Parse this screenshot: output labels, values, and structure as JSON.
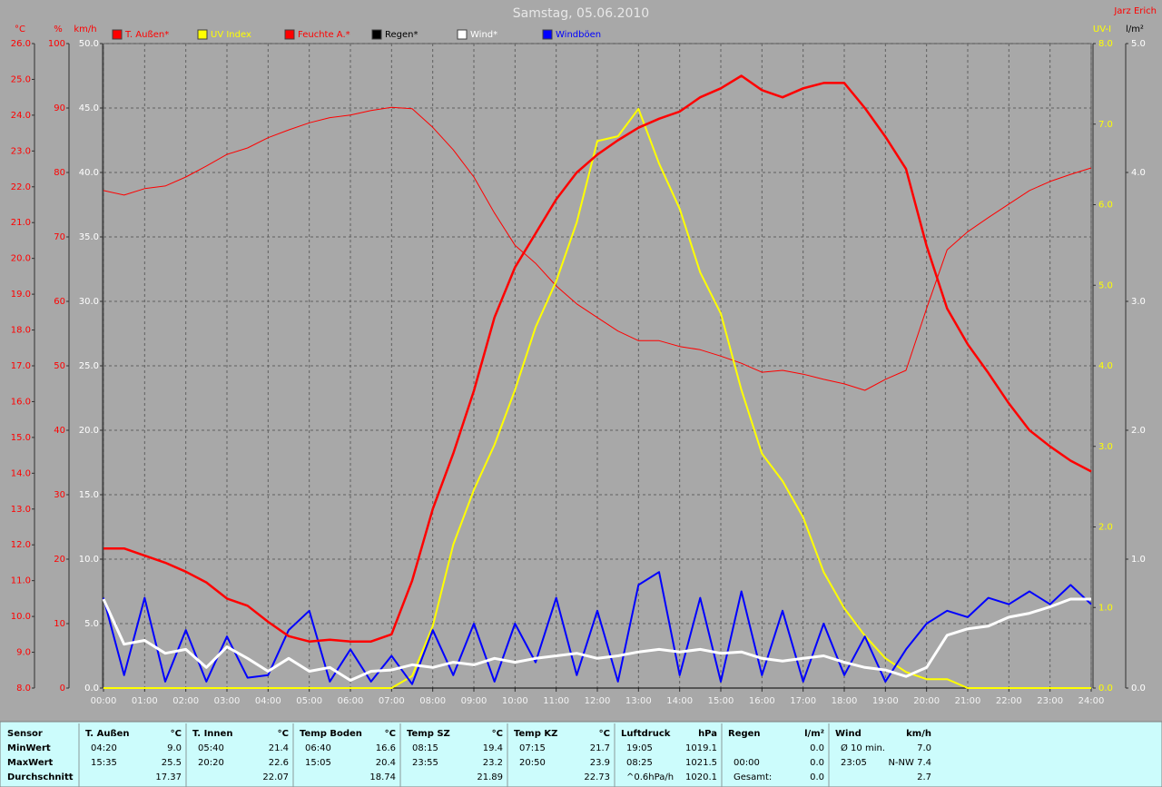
{
  "chart_data": {
    "type": "line",
    "title": "Samstag, 05.06.2010",
    "author": "Jarz Erich",
    "x": [
      0,
      0.5,
      1,
      1.5,
      2,
      2.5,
      3,
      3.5,
      4,
      4.5,
      5,
      5.5,
      6,
      6.5,
      7,
      7.5,
      8,
      8.5,
      9,
      9.5,
      10,
      10.5,
      11,
      11.5,
      12,
      12.5,
      13,
      13.5,
      14,
      14.5,
      15,
      15.5,
      16,
      16.5,
      17,
      17.5,
      18,
      18.5,
      19,
      19.5,
      20,
      20.5,
      21,
      21.5,
      22,
      22.5,
      23,
      23.5,
      24
    ],
    "xlim": [
      0,
      24
    ],
    "xticks": [
      {
        "value": 0,
        "label": "00:00"
      },
      {
        "value": 1,
        "label": "01:00"
      },
      {
        "value": 2,
        "label": "02:00"
      },
      {
        "value": 3,
        "label": "03:00"
      },
      {
        "value": 4,
        "label": "04:00"
      },
      {
        "value": 5,
        "label": "05:00"
      },
      {
        "value": 6,
        "label": "06:00"
      },
      {
        "value": 7,
        "label": "07:00"
      },
      {
        "value": 8,
        "label": "08:00"
      },
      {
        "value": 9,
        "label": "09:00"
      },
      {
        "value": 10,
        "label": "10:00"
      },
      {
        "value": 11,
        "label": "11:00"
      },
      {
        "value": 12,
        "label": "12:00"
      },
      {
        "value": 13,
        "label": "13:00"
      },
      {
        "value": 14,
        "label": "14:00"
      },
      {
        "value": 15,
        "label": "15:00"
      },
      {
        "value": 16,
        "label": "16:00"
      },
      {
        "value": 17,
        "label": "17:00"
      },
      {
        "value": 18,
        "label": "18:00"
      },
      {
        "value": 19,
        "label": "19:00"
      },
      {
        "value": 20,
        "label": "20:00"
      },
      {
        "value": 21,
        "label": "21:00"
      },
      {
        "value": 22,
        "label": "22:00"
      },
      {
        "value": 23,
        "label": "23:00"
      },
      {
        "value": 24,
        "label": "24:00"
      }
    ],
    "grid": true,
    "axes": [
      {
        "label": "°C",
        "side": "left",
        "color": "#ff0000",
        "lim": [
          8,
          26
        ],
        "ticks": [
          {
            "value": 8,
            "label": "8.0"
          },
          {
            "value": 9,
            "label": "9.0"
          },
          {
            "value": 10,
            "label": "10.0"
          },
          {
            "value": 11,
            "label": "11.0"
          },
          {
            "value": 12,
            "label": "12.0"
          },
          {
            "value": 13,
            "label": "13.0"
          },
          {
            "value": 14,
            "label": "14.0"
          },
          {
            "value": 15,
            "label": "15.0"
          },
          {
            "value": 16,
            "label": "16.0"
          },
          {
            "value": 17,
            "label": "17.0"
          },
          {
            "value": 18,
            "label": "18.0"
          },
          {
            "value": 19,
            "label": "19.0"
          },
          {
            "value": 20,
            "label": "20.0"
          },
          {
            "value": 21,
            "label": "21.0"
          },
          {
            "value": 22,
            "label": "22.0"
          },
          {
            "value": 23,
            "label": "23.0"
          },
          {
            "value": 24,
            "label": "24.0"
          },
          {
            "value": 25,
            "label": "25.0"
          },
          {
            "value": 26,
            "label": "26.0"
          }
        ]
      },
      {
        "label": "%",
        "side": "left",
        "color": "#ff0000",
        "lim": [
          0,
          100
        ],
        "ticks": [
          0,
          10,
          20,
          30,
          40,
          50,
          60,
          70,
          80,
          90,
          100
        ]
      },
      {
        "label": "km/h",
        "side": "left",
        "color": "#ffffff",
        "grid": true,
        "lim": [
          0,
          50
        ],
        "ticks": [
          {
            "value": 0,
            "label": "0.0"
          },
          {
            "value": 5,
            "label": "5.0"
          },
          {
            "value": 10,
            "label": "10.0"
          },
          {
            "value": 15,
            "label": "15.0"
          },
          {
            "value": 20,
            "label": "20.0"
          },
          {
            "value": 25,
            "label": "25.0"
          },
          {
            "value": 30,
            "label": "30.0"
          },
          {
            "value": 35,
            "label": "35.0"
          },
          {
            "value": 40,
            "label": "40.0"
          },
          {
            "value": 45,
            "label": "45.0"
          },
          {
            "value": 50,
            "label": "50.0"
          }
        ]
      },
      {
        "label": "UV-I",
        "side": "right",
        "color": "#ffff00",
        "lim": [
          0,
          8
        ],
        "ticks": [
          {
            "value": 0,
            "label": "0.0"
          },
          {
            "value": 1,
            "label": "1.0"
          },
          {
            "value": 2,
            "label": "2.0"
          },
          {
            "value": 3,
            "label": "3.0"
          },
          {
            "value": 4,
            "label": "4.0"
          },
          {
            "value": 5,
            "label": "5.0"
          },
          {
            "value": 6,
            "label": "6.0"
          },
          {
            "value": 7,
            "label": "7.0"
          },
          {
            "value": 8,
            "label": "8.0"
          }
        ]
      },
      {
        "label": "l/m²",
        "side": "right",
        "color": "#ffffff",
        "lim": [
          0,
          5
        ],
        "ticks": [
          {
            "value": 0,
            "label": "0.0"
          },
          {
            "value": 1,
            "label": "1.0"
          },
          {
            "value": 2,
            "label": "2.0"
          },
          {
            "value": 3,
            "label": "3.0"
          },
          {
            "value": 4,
            "label": "4.0"
          },
          {
            "value": 5,
            "label": "5.0"
          }
        ]
      }
    ],
    "series": [
      {
        "name": "T. Außen*",
        "color": "#ff0000",
        "axis": 0,
        "values": [
          11.9,
          11.9,
          11.7,
          11.5,
          11.25,
          10.95,
          10.5,
          10.3,
          9.85,
          9.45,
          9.3,
          9.35,
          9.3,
          9.3,
          9.5,
          11.0,
          13.0,
          14.55,
          16.3,
          18.35,
          19.75,
          20.7,
          21.65,
          22.4,
          22.9,
          23.3,
          23.65,
          23.9,
          24.1,
          24.5,
          24.75,
          25.1,
          24.7,
          24.5,
          24.75,
          24.9,
          24.9,
          24.2,
          23.4,
          22.5,
          20.35,
          18.6,
          17.6,
          16.8,
          15.95,
          15.2,
          14.75,
          14.35,
          14.05
        ]
      },
      {
        "name": "UV Index",
        "color": "#ffff00",
        "axis": 3,
        "values": [
          0,
          0,
          0,
          0,
          0,
          0,
          0,
          0,
          0,
          0,
          0,
          0,
          0,
          0,
          0,
          0.15,
          0.77,
          1.78,
          2.46,
          3.02,
          3.7,
          4.48,
          5.05,
          5.78,
          6.79,
          6.85,
          7.19,
          6.51,
          5.95,
          5.16,
          4.65,
          3.7,
          2.91,
          2.57,
          2.12,
          1.44,
          0.99,
          0.65,
          0.37,
          0.2,
          0.11,
          0.11,
          0,
          0,
          0,
          0,
          0,
          0,
          0
        ]
      },
      {
        "name": "Feuchte A.*",
        "color": "#ff0000",
        "axis": 1,
        "values": [
          77.2,
          76.5,
          77.5,
          77.9,
          79.3,
          81,
          82.8,
          83.8,
          85.4,
          86.6,
          87.7,
          88.5,
          88.9,
          89.6,
          90.1,
          89.9,
          87,
          83.5,
          79.3,
          73.7,
          68.7,
          65.9,
          62.4,
          59.6,
          57.5,
          55.4,
          53.9,
          53.9,
          53,
          52.5,
          51.5,
          50.4,
          49,
          49.3,
          48.7,
          47.9,
          47.2,
          46.2,
          47.9,
          49.3,
          58.9,
          68,
          70.8,
          73,
          75.1,
          77.2,
          78.6,
          79.7,
          80.7
        ]
      },
      {
        "name": "Regen*",
        "color": "#000000",
        "axis": 4,
        "values": [
          0,
          0,
          0,
          0,
          0,
          0,
          0,
          0,
          0,
          0,
          0,
          0,
          0,
          0,
          0,
          0,
          0,
          0,
          0,
          0,
          0,
          0,
          0,
          0,
          0,
          0,
          0,
          0,
          0,
          0,
          0,
          0,
          0,
          0,
          0,
          0,
          0,
          0,
          0,
          0,
          0,
          0,
          0,
          0,
          0,
          0,
          0,
          0,
          0
        ]
      },
      {
        "name": "Wind*",
        "color": "#ffffff",
        "axis": 2,
        "values": [
          6.9,
          3.4,
          3.7,
          2.7,
          3,
          1.6,
          3.2,
          2.3,
          1.3,
          2.3,
          1.3,
          1.6,
          0.6,
          1.3,
          1.4,
          1.8,
          1.6,
          2,
          1.8,
          2.3,
          2,
          2.3,
          2.5,
          2.7,
          2.3,
          2.5,
          2.8,
          3,
          2.8,
          3,
          2.7,
          2.8,
          2.3,
          2.1,
          2.3,
          2.5,
          2,
          1.6,
          1.4,
          0.9,
          1.6,
          4.1,
          4.6,
          4.8,
          5.5,
          5.8,
          6.3,
          6.9,
          6.9
        ]
      },
      {
        "name": "Windböen",
        "color": "#0000ff",
        "axis": 2,
        "values": [
          7,
          1,
          7,
          0.5,
          4.5,
          0.5,
          4,
          0.8,
          1,
          4.5,
          6,
          0.5,
          3,
          0.5,
          2.5,
          0.3,
          4.5,
          1,
          5,
          0.5,
          5,
          2,
          7,
          1,
          6,
          0.5,
          8,
          9,
          1,
          7,
          0.5,
          7.5,
          1,
          6,
          0.5,
          5,
          1,
          4,
          0.5,
          3,
          5,
          6,
          5.5,
          7,
          6.5,
          7.5,
          6.5,
          8,
          6.5
        ]
      }
    ]
  },
  "table": {
    "row_labels": [
      "Sensor",
      "MinWert",
      "MaxWert",
      "Durchschnitt"
    ],
    "columns": [
      {
        "name": "T. Außen",
        "unit": "°C",
        "rows": [
          {
            "left": "04:20",
            "right": "9.0"
          },
          {
            "left": "15:35",
            "right": "25.5"
          },
          {
            "right": "17.37"
          }
        ]
      },
      {
        "name": "T. Innen",
        "unit": "°C",
        "rows": [
          {
            "left": "05:40",
            "right": "21.4"
          },
          {
            "left": "20:20",
            "right": "22.6"
          },
          {
            "right": "22.07"
          }
        ]
      },
      {
        "name": "Temp Boden",
        "unit": "°C",
        "rows": [
          {
            "left": "06:40",
            "right": "16.6"
          },
          {
            "left": "15:05",
            "right": "20.4"
          },
          {
            "right": "18.74"
          }
        ]
      },
      {
        "name": "Temp SZ",
        "unit": "°C",
        "rows": [
          {
            "left": "08:15",
            "right": "19.4"
          },
          {
            "left": "23:55",
            "right": "23.2"
          },
          {
            "right": "21.89"
          }
        ]
      },
      {
        "name": "Temp KZ",
        "unit": "°C",
        "rows": [
          {
            "left": "07:15",
            "right": "21.7"
          },
          {
            "left": "20:50",
            "right": "23.9"
          },
          {
            "right": "22.73"
          }
        ]
      },
      {
        "name": "Luftdruck",
        "unit": "hPa",
        "rows": [
          {
            "left": "19:05",
            "right": "1019.1"
          },
          {
            "left": "08:25",
            "right": "1021.5"
          },
          {
            "left": "^0.6hPa/h",
            "right": "1020.1"
          }
        ]
      },
      {
        "name": "Regen",
        "unit": "l/m²",
        "rows": [
          {
            "right": "0.0"
          },
          {
            "left": "00:00",
            "right": "0.0"
          },
          {
            "left": "Gesamt:",
            "right": "0.0"
          }
        ]
      },
      {
        "name": "Wind",
        "unit": "km/h",
        "rows": [
          {
            "left": "Ø 10 min.",
            "right": "7.0"
          },
          {
            "left": "23:05",
            "right": "N-NW 7.4"
          },
          {
            "right": "2.7"
          }
        ]
      }
    ]
  }
}
